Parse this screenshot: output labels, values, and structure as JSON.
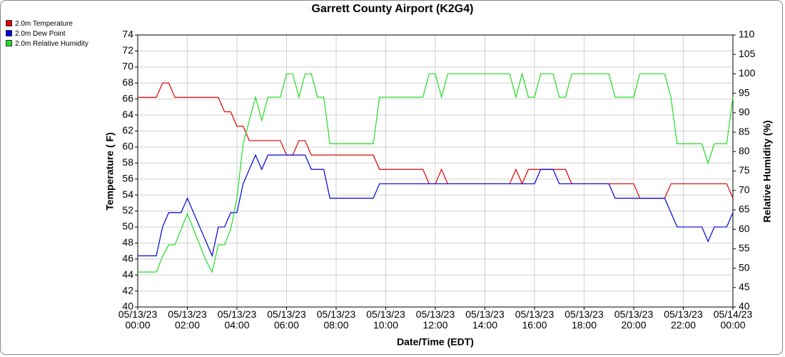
{
  "chart_data": {
    "type": "line",
    "title": "Garrett County Airport (K2G4)",
    "xlabel": "Date/Time (EDT)",
    "ylabel": "Temperature ( F)",
    "y2label": "Relative Humidity (%)",
    "legend": "top-left",
    "grid": true,
    "xlim": [
      "05/13/23 00:00",
      "05/14/23 00:00"
    ],
    "xticks": [
      "05/13/23 00:00",
      "05/13/23 02:00",
      "05/13/23 04:00",
      "05/13/23 06:00",
      "05/13/23 08:00",
      "05/13/23 10:00",
      "05/13/23 12:00",
      "05/13/23 14:00",
      "05/13/23 16:00",
      "05/13/23 18:00",
      "05/13/23 20:00",
      "05/13/23 22:00",
      "05/14/23 00:00"
    ],
    "ylim": [
      40,
      74
    ],
    "yticks": [
      40,
      42,
      44,
      46,
      48,
      50,
      52,
      54,
      56,
      58,
      60,
      62,
      64,
      66,
      68,
      70,
      72,
      74
    ],
    "y2lim": [
      40,
      110
    ],
    "y2ticks": [
      40,
      45,
      50,
      55,
      60,
      65,
      70,
      75,
      80,
      85,
      90,
      95,
      100,
      105,
      110
    ],
    "x": [
      "05/13/23 00:00",
      "05/13/23 00:15",
      "05/13/23 00:30",
      "05/13/23 00:45",
      "05/13/23 01:00",
      "05/13/23 01:15",
      "05/13/23 01:30",
      "05/13/23 01:45",
      "05/13/23 02:00",
      "05/13/23 02:15",
      "05/13/23 02:30",
      "05/13/23 02:45",
      "05/13/23 03:00",
      "05/13/23 03:15",
      "05/13/23 03:30",
      "05/13/23 03:45",
      "05/13/23 04:00",
      "05/13/23 04:15",
      "05/13/23 04:30",
      "05/13/23 04:45",
      "05/13/23 05:00",
      "05/13/23 05:15",
      "05/13/23 05:30",
      "05/13/23 05:45",
      "05/13/23 06:00",
      "05/13/23 06:15",
      "05/13/23 06:30",
      "05/13/23 06:45",
      "05/13/23 07:00",
      "05/13/23 07:15",
      "05/13/23 07:30",
      "05/13/23 07:45",
      "05/13/23 08:00",
      "05/13/23 08:15",
      "05/13/23 08:30",
      "05/13/23 08:45",
      "05/13/23 09:00",
      "05/13/23 09:15",
      "05/13/23 09:30",
      "05/13/23 09:45",
      "05/13/23 10:00",
      "05/13/23 10:15",
      "05/13/23 10:30",
      "05/13/23 10:45",
      "05/13/23 11:00",
      "05/13/23 11:15",
      "05/13/23 11:30",
      "05/13/23 11:45",
      "05/13/23 12:00",
      "05/13/23 12:15",
      "05/13/23 12:30",
      "05/13/23 12:45",
      "05/13/23 13:00",
      "05/13/23 13:15",
      "05/13/23 13:30",
      "05/13/23 13:45",
      "05/13/23 14:00",
      "05/13/23 14:15",
      "05/13/23 14:30",
      "05/13/23 14:45",
      "05/13/23 15:00",
      "05/13/23 15:15",
      "05/13/23 15:30",
      "05/13/23 15:45",
      "05/13/23 16:00",
      "05/13/23 16:15",
      "05/13/23 16:30",
      "05/13/23 16:45",
      "05/13/23 17:00",
      "05/13/23 17:15",
      "05/13/23 17:30",
      "05/13/23 17:45",
      "05/13/23 18:00",
      "05/13/23 18:15",
      "05/13/23 18:30",
      "05/13/23 18:45",
      "05/13/23 19:00",
      "05/13/23 19:15",
      "05/13/23 19:30",
      "05/13/23 19:45",
      "05/13/23 20:00",
      "05/13/23 20:15",
      "05/13/23 20:30",
      "05/13/23 20:45",
      "05/13/23 21:00",
      "05/13/23 21:15",
      "05/13/23 21:30",
      "05/13/23 21:45",
      "05/13/23 22:00",
      "05/13/23 22:15",
      "05/13/23 22:30",
      "05/13/23 22:45",
      "05/13/23 23:00",
      "05/13/23 23:15",
      "05/13/23 23:30",
      "05/13/23 23:45",
      "05/14/23 00:00"
    ],
    "series": [
      {
        "name": "2.0m Temperature",
        "color": "#e00000",
        "axis": "y",
        "values": [
          66.2,
          66.2,
          66.2,
          66.2,
          68.0,
          68.0,
          66.2,
          66.2,
          66.2,
          66.2,
          66.2,
          66.2,
          66.2,
          66.2,
          64.4,
          64.4,
          62.6,
          62.6,
          60.8,
          60.8,
          60.8,
          60.8,
          60.8,
          60.8,
          59.0,
          59.0,
          60.8,
          60.8,
          59.0,
          59.0,
          59.0,
          59.0,
          59.0,
          59.0,
          59.0,
          59.0,
          59.0,
          59.0,
          59.0,
          57.2,
          57.2,
          57.2,
          57.2,
          57.2,
          57.2,
          57.2,
          57.2,
          55.4,
          55.4,
          57.2,
          55.4,
          55.4,
          55.4,
          55.4,
          55.4,
          55.4,
          55.4,
          55.4,
          55.4,
          55.4,
          55.4,
          57.2,
          55.4,
          57.2,
          57.2,
          57.2,
          57.2,
          57.2,
          57.2,
          57.2,
          55.4,
          55.4,
          55.4,
          55.4,
          55.4,
          55.4,
          55.4,
          55.4,
          55.4,
          55.4,
          55.4,
          53.6,
          53.6,
          53.6,
          53.6,
          53.6,
          55.4,
          55.4,
          55.4,
          55.4,
          55.4,
          55.4,
          55.4,
          55.4,
          55.4,
          55.4,
          53.6
        ]
      },
      {
        "name": "2.0m Dew Point",
        "color": "#0000dd",
        "axis": "y",
        "values": [
          46.4,
          46.4,
          46.4,
          46.4,
          50.0,
          51.8,
          51.8,
          51.8,
          53.6,
          51.8,
          50.0,
          48.2,
          46.4,
          50.0,
          50.0,
          51.8,
          51.8,
          55.4,
          57.2,
          59.0,
          57.2,
          59.0,
          59.0,
          59.0,
          59.0,
          59.0,
          59.0,
          59.0,
          57.2,
          57.2,
          57.2,
          53.6,
          53.6,
          53.6,
          53.6,
          53.6,
          53.6,
          53.6,
          53.6,
          55.4,
          55.4,
          55.4,
          55.4,
          55.4,
          55.4,
          55.4,
          55.4,
          55.4,
          55.4,
          55.4,
          55.4,
          55.4,
          55.4,
          55.4,
          55.4,
          55.4,
          55.4,
          55.4,
          55.4,
          55.4,
          55.4,
          55.4,
          55.4,
          55.4,
          55.4,
          57.2,
          57.2,
          57.2,
          55.4,
          55.4,
          55.4,
          55.4,
          55.4,
          55.4,
          55.4,
          55.4,
          55.4,
          53.6,
          53.6,
          53.6,
          53.6,
          53.6,
          53.6,
          53.6,
          53.6,
          53.6,
          51.8,
          50.0,
          50.0,
          50.0,
          50.0,
          50.0,
          48.2,
          50.0,
          50.0,
          50.0,
          51.8
        ]
      },
      {
        "name": "2.0m Relative Humidity",
        "color": "#22dd22",
        "axis": "y2",
        "values": [
          49,
          49,
          49,
          49,
          53,
          56,
          56,
          60,
          64,
          60,
          56,
          52,
          49,
          56,
          56,
          60,
          68,
          82,
          88,
          94,
          88,
          94,
          94,
          94,
          100,
          100,
          94,
          100,
          100,
          94,
          94,
          82,
          82,
          82,
          82,
          82,
          82,
          82,
          82,
          94,
          94,
          94,
          94,
          94,
          94,
          94,
          94,
          100,
          100,
          94,
          100,
          100,
          100,
          100,
          100,
          100,
          100,
          100,
          100,
          100,
          100,
          94,
          100,
          94,
          94,
          100,
          100,
          100,
          94,
          94,
          100,
          100,
          100,
          100,
          100,
          100,
          100,
          94,
          94,
          94,
          94,
          100,
          100,
          100,
          100,
          100,
          94,
          82,
          82,
          82,
          82,
          82,
          77,
          82,
          82,
          82,
          94
        ]
      }
    ]
  }
}
